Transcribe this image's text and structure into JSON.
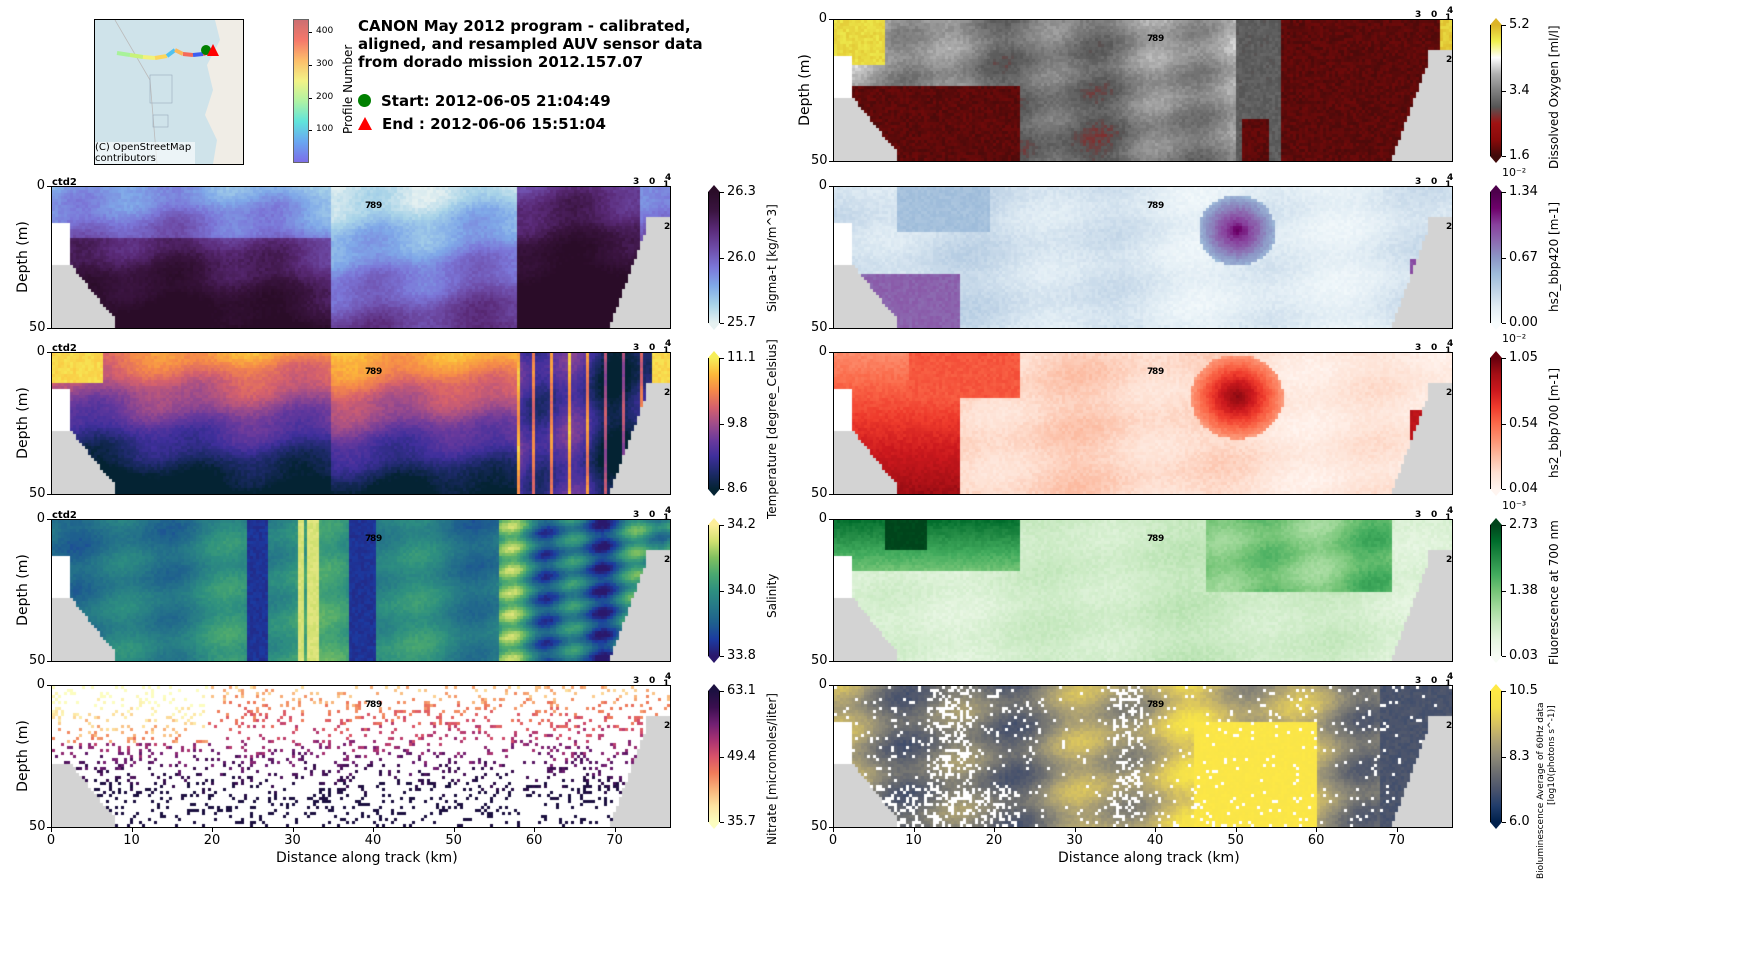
{
  "header": {
    "title_lines": [
      "CANON May 2012 program - calibrated,",
      "aligned, and resampled AUV sensor data",
      "from dorado mission 2012.157.07"
    ],
    "start_label": "Start: 2012-06-05 21:04:49",
    "end_label": "End  : 2012-06-06 15:51:04",
    "start_color": "#008000",
    "end_color": "#ff0000"
  },
  "map": {
    "copyright": "(C) OpenStreetMap contributors",
    "colorbar": {
      "label": "Profile Number",
      "ticks": [
        "100",
        "200",
        "300",
        "400"
      ],
      "range": [
        0,
        440
      ],
      "colormap": "jet"
    }
  },
  "chart_data": [
    {
      "type": "heatmap",
      "id": "sigma_t",
      "ylabel": "Depth (m)",
      "xlabel": "",
      "yticks": [
        "0",
        "50"
      ],
      "xlim": [
        0,
        77
      ],
      "ylim": [
        50,
        0
      ],
      "corner_label": "ctd2",
      "colorbar": {
        "label": "Sigma-t [kg/m^3]",
        "ticks": [
          "26.3",
          "26.0",
          "25.7"
        ],
        "range": [
          25.7,
          26.3
        ],
        "colormap": "dense",
        "exponent": ""
      },
      "annotations": [
        "7",
        "8",
        "9",
        "3",
        "0",
        "1",
        "4",
        "2"
      ]
    },
    {
      "type": "heatmap",
      "id": "temperature",
      "ylabel": "Depth (m)",
      "xlabel": "",
      "yticks": [
        "0",
        "50"
      ],
      "xlim": [
        0,
        77
      ],
      "ylim": [
        50,
        0
      ],
      "corner_label": "ctd2",
      "colorbar": {
        "label": "Temperature [degree_Celsius]",
        "ticks": [
          "11.1",
          "9.8",
          "8.6"
        ],
        "range": [
          8.6,
          11.1
        ],
        "colormap": "thermal",
        "exponent": ""
      },
      "annotations": [
        "7",
        "8",
        "9",
        "3",
        "0",
        "1",
        "4",
        "2"
      ]
    },
    {
      "type": "heatmap",
      "id": "salinity",
      "ylabel": "Depth (m)",
      "xlabel": "",
      "yticks": [
        "0",
        "50"
      ],
      "xlim": [
        0,
        77
      ],
      "ylim": [
        50,
        0
      ],
      "corner_label": "ctd2",
      "colorbar": {
        "label": "Salinity",
        "ticks": [
          "34.2",
          "34.0",
          "33.8"
        ],
        "range": [
          33.8,
          34.2
        ],
        "colormap": "haline",
        "exponent": ""
      },
      "annotations": [
        "7",
        "8",
        "9",
        "3",
        "0",
        "1",
        "4",
        "2"
      ]
    },
    {
      "type": "heatmap",
      "id": "nitrate",
      "ylabel": "Depth (m)",
      "xlabel": "Distance along track (km)",
      "yticks": [
        "0",
        "50"
      ],
      "xticks": [
        "0",
        "10",
        "20",
        "30",
        "40",
        "50",
        "60",
        "70"
      ],
      "xlim": [
        0,
        77
      ],
      "ylim": [
        50,
        0
      ],
      "corner_label": "",
      "colorbar": {
        "label": "Nitrate [micromoles/liter]",
        "ticks": [
          "63.1",
          "49.4",
          "35.7"
        ],
        "range": [
          35.7,
          63.1
        ],
        "colormap": "magma_r",
        "exponent": ""
      },
      "annotations": [
        "7",
        "8",
        "9",
        "3",
        "0",
        "1",
        "4",
        "2"
      ]
    },
    {
      "type": "heatmap",
      "id": "oxygen",
      "ylabel": "Depth (m)",
      "xlabel": "",
      "yticks": [
        "0",
        "50"
      ],
      "xlim": [
        0,
        77
      ],
      "ylim": [
        50,
        0
      ],
      "corner_label": "",
      "colorbar": {
        "label": "Dissolved Oxygen [ml/l]",
        "ticks": [
          "5.2",
          "3.4",
          "1.6"
        ],
        "range": [
          1.6,
          5.2
        ],
        "colormap": "oxy",
        "exponent": ""
      },
      "annotations": [
        "7",
        "8",
        "9",
        "3",
        "0",
        "1",
        "4",
        "2"
      ]
    },
    {
      "type": "heatmap",
      "id": "bbp420",
      "ylabel": "",
      "xlabel": "",
      "yticks": [
        "0",
        "50"
      ],
      "xlim": [
        0,
        77
      ],
      "ylim": [
        50,
        0
      ],
      "corner_label": "",
      "colorbar": {
        "label": "hs2_bbp420 [m-1]",
        "ticks": [
          "1.34",
          "0.67",
          "0.00"
        ],
        "range": [
          0.0,
          1.34
        ],
        "colormap": "BuPu",
        "exponent": "10⁻²"
      },
      "annotations": [
        "7",
        "8",
        "9",
        "3",
        "0",
        "1",
        "4",
        "2"
      ]
    },
    {
      "type": "heatmap",
      "id": "bbp700",
      "ylabel": "",
      "xlabel": "",
      "yticks": [
        "0",
        "50"
      ],
      "xlim": [
        0,
        77
      ],
      "ylim": [
        50,
        0
      ],
      "corner_label": "",
      "colorbar": {
        "label": "hs2_bbp700 [m-1]",
        "ticks": [
          "1.05",
          "0.54",
          "0.04"
        ],
        "range": [
          0.04,
          1.05
        ],
        "colormap": "Reds",
        "exponent": "10⁻²"
      },
      "annotations": [
        "7",
        "8",
        "9",
        "3",
        "0",
        "1",
        "4",
        "2"
      ]
    },
    {
      "type": "heatmap",
      "id": "fluorescence",
      "ylabel": "",
      "xlabel": "",
      "yticks": [
        "0",
        "50"
      ],
      "xlim": [
        0,
        77
      ],
      "ylim": [
        50,
        0
      ],
      "corner_label": "",
      "colorbar": {
        "label": "Fluorescence at 700 nm",
        "ticks": [
          "2.73",
          "1.38",
          "0.03"
        ],
        "range": [
          0.03,
          2.73
        ],
        "colormap": "Greens",
        "exponent": "10⁻³"
      },
      "annotations": [
        "7",
        "8",
        "9",
        "3",
        "0",
        "1",
        "4",
        "2"
      ]
    },
    {
      "type": "heatmap",
      "id": "bioluminescence",
      "ylabel": "",
      "xlabel": "Distance along track (km)",
      "yticks": [
        "0",
        "50"
      ],
      "xticks": [
        "0",
        "10",
        "20",
        "30",
        "40",
        "50",
        "60",
        "70"
      ],
      "xlim": [
        0,
        77
      ],
      "ylim": [
        50,
        0
      ],
      "corner_label": "",
      "colorbar": {
        "label": "Bioluminescence Average of 60Hz data",
        "label2": "[log10(photons s^-1)]",
        "ticks": [
          "10.5",
          "8.3",
          "6.0"
        ],
        "range": [
          6.0,
          10.5
        ],
        "colormap": "cividis",
        "exponent": ""
      },
      "annotations": [
        "7",
        "8",
        "9",
        "3",
        "0",
        "1",
        "4",
        "2"
      ]
    }
  ]
}
